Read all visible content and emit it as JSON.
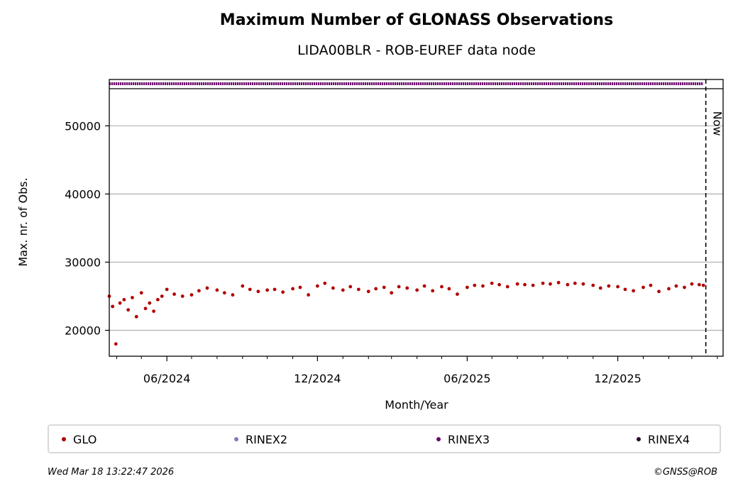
{
  "chart_data": {
    "type": "scatter",
    "title": "Maximum Number of GLONASS Observations",
    "subtitle": "LIDA00BLR - ROB-EUREF data node",
    "xlabel": "Month/Year",
    "ylabel": "Max. nr. of Obs.",
    "x_tick_labels": [
      "06/2024",
      "12/2024",
      "06/2025",
      "12/2025"
    ],
    "x_ticks": [
      "2024-06-01",
      "2024-12-01",
      "2025-06-01",
      "2025-12-01"
    ],
    "xlim": [
      "2024-03-23",
      "2026-04-08"
    ],
    "ylim": [
      16200,
      56800
    ],
    "y_ticks": [
      20000,
      30000,
      40000,
      50000
    ],
    "grid": "horizontal",
    "now_date": "2026-03-18",
    "now_label": "Now",
    "series": [
      {
        "name": "GLO",
        "color": "#b20000",
        "x": [
          "2024-03-23",
          "2024-03-27",
          "2024-03-31",
          "2024-04-05",
          "2024-04-10",
          "2024-04-15",
          "2024-04-20",
          "2024-04-25",
          "2024-05-01",
          "2024-05-06",
          "2024-05-11",
          "2024-05-16",
          "2024-05-21",
          "2024-05-26",
          "2024-06-01",
          "2024-06-10",
          "2024-06-20",
          "2024-07-01",
          "2024-07-10",
          "2024-07-20",
          "2024-08-01",
          "2024-08-10",
          "2024-08-20",
          "2024-09-01",
          "2024-09-10",
          "2024-09-20",
          "2024-10-01",
          "2024-10-10",
          "2024-10-20",
          "2024-11-01",
          "2024-11-10",
          "2024-11-20",
          "2024-12-01",
          "2024-12-10",
          "2024-12-20",
          "2025-01-01",
          "2025-01-10",
          "2025-01-20",
          "2025-02-01",
          "2025-02-10",
          "2025-02-20",
          "2025-03-01",
          "2025-03-10",
          "2025-03-20",
          "2025-04-01",
          "2025-04-10",
          "2025-04-20",
          "2025-05-01",
          "2025-05-10",
          "2025-05-20",
          "2025-06-01",
          "2025-06-10",
          "2025-06-20",
          "2025-07-01",
          "2025-07-10",
          "2025-07-20",
          "2025-08-01",
          "2025-08-10",
          "2025-08-20",
          "2025-09-01",
          "2025-09-10",
          "2025-09-20",
          "2025-10-01",
          "2025-10-10",
          "2025-10-20",
          "2025-11-01",
          "2025-11-10",
          "2025-11-20",
          "2025-12-01",
          "2025-12-10",
          "2025-12-20",
          "2026-01-01",
          "2026-01-10",
          "2026-01-20",
          "2026-02-01",
          "2026-02-10",
          "2026-02-20",
          "2026-03-01",
          "2026-03-10",
          "2026-03-15"
        ],
        "values": [
          25000,
          23500,
          18000,
          24000,
          24500,
          23000,
          24800,
          22000,
          25500,
          23200,
          24000,
          22800,
          24500,
          25000,
          26000,
          25300,
          25000,
          25200,
          25800,
          26200,
          25900,
          25500,
          25200,
          26500,
          26000,
          25700,
          25900,
          26000,
          25600,
          26100,
          26300,
          25200,
          26500,
          26900,
          26200,
          25900,
          26400,
          26000,
          25700,
          26100,
          26300,
          25500,
          26400,
          26200,
          25900,
          26500,
          25800,
          26400,
          26100,
          25300,
          26300,
          26600,
          26500,
          26900,
          26700,
          26400,
          26800,
          26700,
          26600,
          26900,
          26800,
          27000,
          26700,
          26900,
          26800,
          26600,
          26200,
          26500,
          26400,
          26000,
          25800,
          26300,
          26600,
          25700,
          26100,
          26500,
          26300,
          26800,
          26700,
          26600
        ]
      },
      {
        "name": "RINEX2",
        "color": "#7c7cbf",
        "x": [],
        "values": []
      },
      {
        "name": "RINEX3",
        "color": "#6a0a6a",
        "x_range": [
          "2024-03-23",
          "2026-03-15"
        ],
        "lane": "top strip"
      },
      {
        "name": "RINEX4",
        "color": "#2a0a2a",
        "x": [],
        "values": []
      }
    ]
  },
  "legend": {
    "items": [
      {
        "label": "GLO",
        "color": "#b20000"
      },
      {
        "label": "RINEX2",
        "color": "#7c7cbf"
      },
      {
        "label": "RINEX3",
        "color": "#6a0a6a"
      },
      {
        "label": "RINEX4",
        "color": "#2a0a2a"
      }
    ]
  },
  "footer": {
    "timestamp": "Wed Mar 18 13:22:47 2026",
    "copyright": "©GNSS@ROB"
  }
}
